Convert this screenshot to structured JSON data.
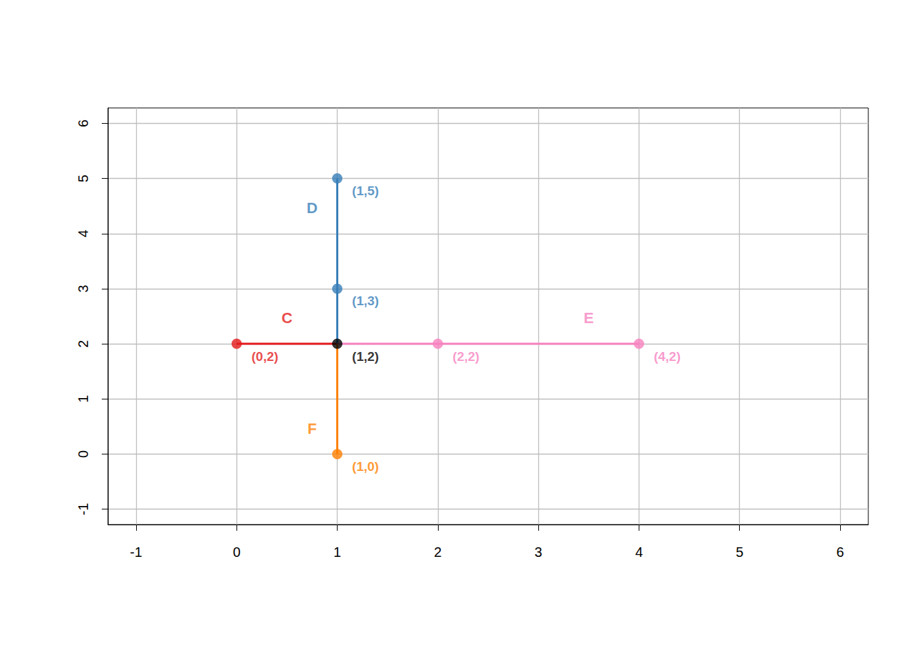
{
  "chart_data": {
    "type": "line",
    "xlim": [
      -1.28,
      6.28
    ],
    "ylim": [
      -1.28,
      6.28
    ],
    "xticks": [
      -1,
      0,
      1,
      2,
      3,
      4,
      5,
      6
    ],
    "yticks": [
      -1,
      0,
      1,
      2,
      3,
      4,
      5,
      6
    ],
    "grid": true,
    "marker": "circle",
    "series": [
      {
        "name": "C",
        "color": "#E41A1C",
        "x": [
          0,
          1
        ],
        "y": [
          2,
          2
        ],
        "name_at": [
          0.5,
          2.47
        ],
        "points": [
          {
            "x": 0,
            "y": 2,
            "label": "(0,2)"
          }
        ]
      },
      {
        "name": "D",
        "color": "#377EB8",
        "x": [
          1,
          1
        ],
        "y": [
          2,
          5
        ],
        "name_at": [
          0.75,
          4.47
        ],
        "points": [
          {
            "x": 1,
            "y": 5,
            "label": "(1,5)"
          },
          {
            "x": 1,
            "y": 3,
            "label": "(1,3)"
          }
        ]
      },
      {
        "name": "E",
        "color": "#F781BF",
        "x": [
          1,
          4
        ],
        "y": [
          2,
          2
        ],
        "name_at": [
          3.5,
          2.47
        ],
        "points": [
          {
            "x": 2,
            "y": 2,
            "label": "(2,2)"
          },
          {
            "x": 4,
            "y": 2,
            "label": "(4,2)"
          }
        ]
      },
      {
        "name": "F",
        "color": "#FF7F00",
        "x": [
          1,
          1
        ],
        "y": [
          2,
          0
        ],
        "name_at": [
          0.75,
          0.46
        ],
        "points": [
          {
            "x": 1,
            "y": 0,
            "label": "(1,0)"
          }
        ]
      }
    ],
    "points": [
      {
        "x": 1,
        "y": 2,
        "label": "(1,2)",
        "color": "#000000"
      }
    ]
  }
}
